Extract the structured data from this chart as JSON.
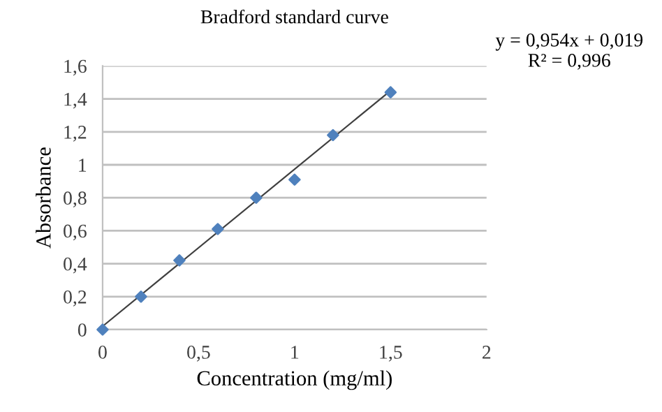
{
  "chart_data": {
    "type": "scatter",
    "title": "Bradford standard curve",
    "xlabel": "Concentration (mg/ml)",
    "ylabel": "Absorbance",
    "annotations": [
      "y = 0,954x + 0,019\nR² = 0,996"
    ],
    "series": [
      {
        "color": "#4f81bd",
        "marker": "diamond",
        "x": [
          0,
          0.2,
          0.4,
          0.6,
          0.8,
          1.0,
          1.2,
          1.5
        ],
        "values": [
          0,
          0.2,
          0.42,
          0.61,
          0.8,
          0.91,
          1.18,
          1.44
        ]
      },
      {
        "type": "line",
        "color": "#404040",
        "marker": "none",
        "x": [
          0,
          1.5
        ],
        "values": [
          0.02,
          1.45
        ]
      }
    ],
    "xlim": [
      0,
      2
    ],
    "ylim": [
      0,
      1.6
    ],
    "xticks": [
      0,
      {
        "value": 0.5,
        "label": "0,5"
      },
      1,
      {
        "value": 1.5,
        "label": "1,5"
      },
      2
    ],
    "yticks": [
      0,
      {
        "value": 0.2,
        "label": "0,2"
      },
      {
        "value": 0.4,
        "label": "0,4"
      },
      {
        "value": 0.6,
        "label": "0,6"
      },
      {
        "value": 0.8,
        "label": "0,8"
      },
      1,
      {
        "value": 1.2,
        "label": "1,2"
      },
      {
        "value": 1.4,
        "label": "1,4"
      },
      {
        "value": 1.6,
        "label": "1,6"
      }
    ],
    "grid": "y",
    "legend": false
  }
}
